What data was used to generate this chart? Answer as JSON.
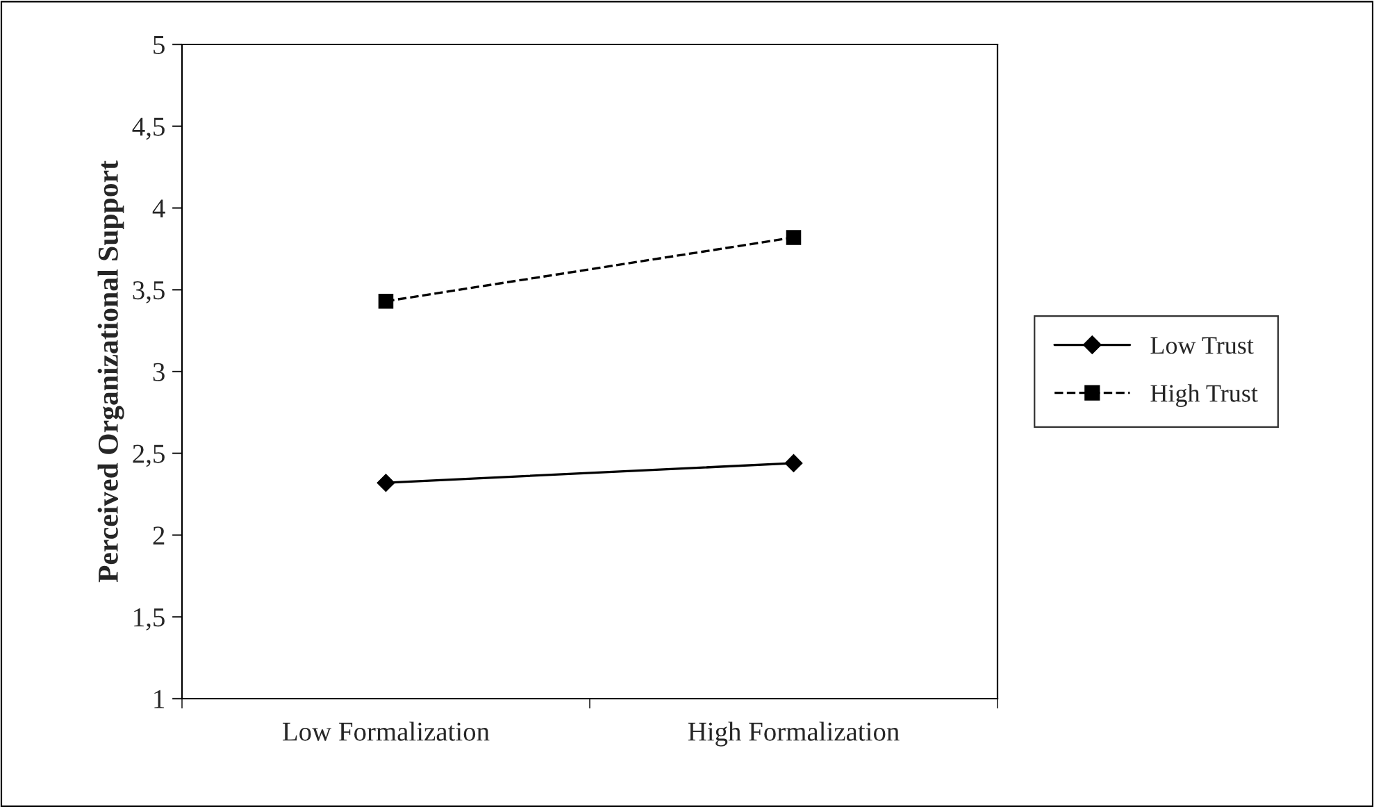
{
  "chart_data": {
    "type": "line",
    "ylabel": "Perceived Organizational Support",
    "categories": [
      "Low Formalization",
      "High Formalization"
    ],
    "series": [
      {
        "name": "Low Trust",
        "color": "#000000",
        "values": [
          2.32,
          2.44
        ],
        "marker": "diamond",
        "line_style": "solid"
      },
      {
        "name": "High Trust",
        "color": "#000000",
        "values": [
          3.43,
          3.82
        ],
        "marker": "square",
        "line_style": "dashed"
      }
    ],
    "ylim": [
      1,
      5
    ],
    "yticks": [
      {
        "value": 1,
        "label": "1"
      },
      {
        "value": 1.5,
        "label": "1,5"
      },
      {
        "value": 2,
        "label": "2"
      },
      {
        "value": 2.5,
        "label": "2,5"
      },
      {
        "value": 3,
        "label": "3"
      },
      {
        "value": 3.5,
        "label": "3,5"
      },
      {
        "value": 4,
        "label": "4"
      },
      {
        "value": 4.5,
        "label": "4,5"
      },
      {
        "value": 5,
        "label": "5"
      }
    ],
    "grid": false,
    "legend": "right"
  }
}
